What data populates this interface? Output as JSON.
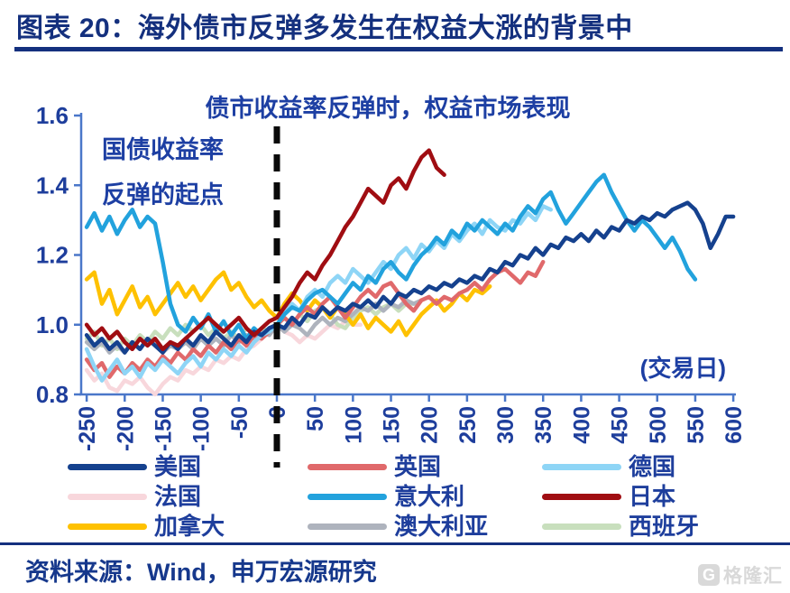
{
  "page": {
    "title": "图表 20：海外债市反弹多发生在权益大涨的背景中",
    "source_note": "资料来源：Wind，申万宏源研究",
    "watermark": "格隆汇",
    "watermark_icon": "G"
  },
  "chart_data": {
    "type": "line",
    "title": "债市收益率反弹时，权益市场表现",
    "annotation": {
      "line1": "国债收益率",
      "line2": "反弹的起点"
    },
    "xlabel": "(交易日)",
    "ylabel": "",
    "x_ticks": [
      -250,
      -200,
      -150,
      -100,
      -50,
      0,
      50,
      100,
      150,
      200,
      250,
      300,
      350,
      400,
      450,
      500,
      550,
      600
    ],
    "y_ticks": [
      0.8,
      1.0,
      1.2,
      1.4,
      1.6
    ],
    "xlim": [
      -258,
      603
    ],
    "ylim": [
      0.8,
      1.6
    ],
    "grid": false,
    "legend_position": "bottom",
    "event_line_x": 0,
    "event_line_color": "#0a0a0a",
    "axis_color": "#4a77c9",
    "tick_label_color": "#1e3e9c",
    "legend_order": [
      "美国",
      "英国",
      "德国",
      "法国",
      "意大利",
      "日本",
      "加拿大",
      "澳大利亚",
      "西班牙"
    ],
    "series": [
      {
        "name": "法国",
        "color": "#f8d7dc",
        "start": -250,
        "step": 10,
        "values": [
          0.87,
          0.84,
          0.86,
          0.82,
          0.81,
          0.84,
          0.83,
          0.85,
          0.82,
          0.8,
          0.83,
          0.85,
          0.84,
          0.87,
          0.86,
          0.88,
          0.87,
          0.9,
          0.89,
          0.91,
          0.9,
          0.93,
          0.94,
          0.96,
          0.98,
          1.0,
          0.98,
          0.97,
          0.95,
          0.97,
          0.96,
          0.98,
          1.0,
          0.99,
          1.01,
          1.0,
          1.0
        ]
      },
      {
        "name": "西班牙",
        "color": "#c8dfbd",
        "start": -250,
        "step": 10,
        "values": [
          0.96,
          0.98,
          0.94,
          0.96,
          0.93,
          0.96,
          0.94,
          0.97,
          0.95,
          0.98,
          0.96,
          0.99,
          0.97,
          1.0,
          0.98,
          1.0,
          0.97,
          0.99,
          0.96,
          0.98,
          0.96,
          0.99,
          0.97,
          0.99,
          0.98,
          1.0,
          1.02,
          1.0,
          1.03,
          1.01,
          1.04,
          1.05,
          1.03,
          1.0,
          0.99,
          1.02,
          1.04,
          1.05,
          1.03,
          1.05,
          1.06,
          1.04,
          1.06,
          1.06
        ]
      },
      {
        "name": "澳大利亚",
        "color": "#aeb3bd",
        "start": -250,
        "step": 10,
        "values": [
          0.95,
          0.93,
          0.95,
          0.92,
          0.94,
          0.92,
          0.95,
          0.93,
          0.96,
          0.94,
          0.92,
          0.94,
          0.93,
          0.95,
          0.93,
          0.96,
          0.94,
          0.96,
          0.94,
          0.97,
          0.95,
          0.97,
          0.96,
          0.98,
          0.97,
          1.0,
          0.98,
          1.0,
          0.99,
          0.97,
          1.0,
          1.02,
          1.0,
          1.02,
          1.01,
          1.03,
          1.05,
          1.04,
          1.06,
          1.04,
          1.06,
          1.05,
          1.07,
          1.06,
          1.07
        ]
      },
      {
        "name": "加拿大",
        "color": "#fec101",
        "start": -250,
        "step": 10,
        "values": [
          1.13,
          1.15,
          1.06,
          1.1,
          1.03,
          1.07,
          1.11,
          1.05,
          1.08,
          1.03,
          1.06,
          1.09,
          1.12,
          1.08,
          1.11,
          1.07,
          1.1,
          1.13,
          1.15,
          1.1,
          1.12,
          1.08,
          1.05,
          1.07,
          1.04,
          1.02,
          1.06,
          1.09,
          1.07,
          1.04,
          1.07,
          1.05,
          1.02,
          1.05,
          1.03,
          1.0,
          1.03,
          0.99,
          1.02,
          1.0,
          0.98,
          1.01,
          0.97,
          1.0,
          1.03,
          1.05,
          1.07,
          1.04,
          1.06,
          1.09,
          1.07,
          1.1,
          1.09,
          1.11
        ]
      },
      {
        "name": "英国",
        "color": "#e0696b",
        "start": -250,
        "step": 10,
        "values": [
          0.9,
          0.87,
          0.89,
          0.85,
          0.88,
          0.86,
          0.89,
          0.87,
          0.9,
          0.88,
          0.91,
          0.89,
          0.92,
          0.9,
          0.93,
          0.91,
          0.94,
          0.92,
          0.95,
          0.93,
          0.96,
          0.94,
          0.97,
          0.96,
          0.98,
          1.0,
          1.02,
          1.0,
          1.03,
          1.05,
          1.03,
          1.06,
          1.08,
          1.05,
          1.02,
          1.05,
          1.08,
          1.1,
          1.08,
          1.11,
          1.12,
          1.09,
          1.06,
          1.04,
          1.07,
          1.08,
          1.06,
          1.08,
          1.07,
          1.09,
          1.1,
          1.12,
          1.1,
          1.13,
          1.15,
          1.16,
          1.14,
          1.12,
          1.15,
          1.14,
          1.18
        ]
      },
      {
        "name": "德国",
        "color": "#8ed5f6",
        "start": -250,
        "step": 10,
        "values": [
          0.93,
          0.88,
          0.84,
          0.87,
          0.9,
          0.86,
          0.88,
          0.85,
          0.89,
          0.87,
          0.9,
          0.88,
          0.86,
          0.89,
          0.91,
          0.88,
          0.92,
          0.9,
          0.93,
          0.91,
          0.94,
          0.92,
          0.95,
          0.97,
          0.98,
          1.0,
          1.03,
          1.06,
          1.04,
          1.08,
          1.1,
          1.08,
          1.12,
          1.14,
          1.12,
          1.16,
          1.14,
          1.12,
          1.15,
          1.18,
          1.16,
          1.2,
          1.22,
          1.19,
          1.23,
          1.21,
          1.24,
          1.22,
          1.26,
          1.24,
          1.27,
          1.29,
          1.26,
          1.3,
          1.28,
          1.27,
          1.3,
          1.29,
          1.32,
          1.3,
          1.34,
          1.33
        ]
      },
      {
        "name": "意大利",
        "color": "#22a2dd",
        "start": -250,
        "step": 10,
        "values": [
          1.28,
          1.32,
          1.27,
          1.31,
          1.26,
          1.3,
          1.33,
          1.28,
          1.31,
          1.29,
          1.18,
          1.06,
          1.0,
          0.98,
          1.02,
          0.99,
          1.03,
          0.98,
          1.01,
          0.97,
          1.0,
          0.96,
          0.99,
          0.97,
          0.99,
          1.0,
          1.03,
          1.05,
          1.04,
          1.07,
          1.09,
          1.1,
          1.08,
          1.06,
          1.09,
          1.12,
          1.1,
          1.14,
          1.12,
          1.16,
          1.18,
          1.15,
          1.13,
          1.17,
          1.2,
          1.22,
          1.25,
          1.23,
          1.27,
          1.25,
          1.29,
          1.27,
          1.3,
          1.28,
          1.26,
          1.29,
          1.27,
          1.31,
          1.34,
          1.32,
          1.36,
          1.38,
          1.33,
          1.29,
          1.32,
          1.35,
          1.38,
          1.41,
          1.43,
          1.38,
          1.34,
          1.3,
          1.27,
          1.3,
          1.28,
          1.25,
          1.22,
          1.25,
          1.21,
          1.16,
          1.13
        ]
      },
      {
        "name": "美国",
        "color": "#15418e",
        "start": -250,
        "step": 10,
        "values": [
          0.97,
          0.94,
          0.96,
          0.93,
          0.95,
          0.92,
          0.95,
          0.93,
          0.96,
          0.94,
          0.92,
          0.95,
          0.93,
          0.96,
          0.94,
          0.97,
          0.95,
          0.98,
          0.96,
          0.94,
          0.97,
          0.95,
          0.98,
          0.97,
          0.99,
          1.0,
          0.99,
          1.02,
          1.0,
          1.03,
          1.02,
          1.05,
          1.03,
          1.05,
          1.04,
          1.06,
          1.05,
          1.07,
          1.05,
          1.08,
          1.06,
          1.09,
          1.08,
          1.1,
          1.09,
          1.11,
          1.1,
          1.12,
          1.11,
          1.13,
          1.12,
          1.14,
          1.13,
          1.16,
          1.15,
          1.18,
          1.17,
          1.2,
          1.19,
          1.22,
          1.2,
          1.23,
          1.22,
          1.25,
          1.24,
          1.26,
          1.24,
          1.27,
          1.25,
          1.28,
          1.27,
          1.3,
          1.29,
          1.31,
          1.3,
          1.32,
          1.31,
          1.33,
          1.34,
          1.35,
          1.33,
          1.29,
          1.22,
          1.26,
          1.31,
          1.31
        ]
      },
      {
        "name": "日本",
        "color": "#a00d12",
        "start": -250,
        "step": 10,
        "values": [
          1.0,
          0.97,
          0.99,
          0.96,
          0.98,
          0.95,
          0.93,
          0.96,
          0.94,
          0.96,
          0.93,
          0.95,
          0.94,
          0.96,
          0.98,
          1.0,
          1.02,
          1.0,
          0.98,
          1.0,
          1.02,
          0.99,
          0.97,
          0.99,
          1.01,
          1.02,
          1.05,
          1.08,
          1.12,
          1.15,
          1.13,
          1.17,
          1.2,
          1.24,
          1.28,
          1.31,
          1.35,
          1.39,
          1.37,
          1.35,
          1.4,
          1.42,
          1.39,
          1.44,
          1.48,
          1.5,
          1.45,
          1.43
        ]
      }
    ]
  }
}
